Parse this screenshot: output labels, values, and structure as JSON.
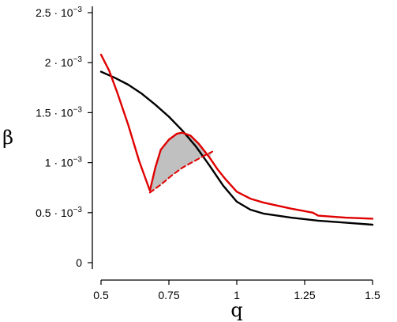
{
  "chart_data": {
    "type": "line",
    "xlabel": "q",
    "ylabel": "β",
    "xlim": [
      0.5,
      1.5
    ],
    "ylim": [
      0,
      0.0025
    ],
    "grid": false,
    "x_ticks": [
      {
        "value": 0.5,
        "label": "0.5"
      },
      {
        "value": 0.75,
        "label": "0.75"
      },
      {
        "value": 1.0,
        "label": "1"
      },
      {
        "value": 1.25,
        "label": "1.25"
      },
      {
        "value": 1.5,
        "label": "1.5"
      }
    ],
    "y_ticks": [
      {
        "value": 0,
        "mantissa": "0",
        "exp": ""
      },
      {
        "value": 0.0005,
        "mantissa": "0.5 · 10",
        "exp": "−3"
      },
      {
        "value": 0.001,
        "mantissa": "1 · 10",
        "exp": "−3"
      },
      {
        "value": 0.0015,
        "mantissa": "1.5 · 10",
        "exp": "−3"
      },
      {
        "value": 0.002,
        "mantissa": "2 · 10",
        "exp": "−3"
      },
      {
        "value": 0.0025,
        "mantissa": "2.5 · 10",
        "exp": "−3"
      }
    ],
    "series": [
      {
        "color": "#000000",
        "style": "solid",
        "x": [
          0.5,
          0.55,
          0.6,
          0.65,
          0.7,
          0.75,
          0.8,
          0.85,
          0.9,
          0.95,
          1.0,
          1.05,
          1.1,
          1.2,
          1.3,
          1.4,
          1.5
        ],
        "y": [
          0.00191,
          0.00185,
          0.00178,
          0.00169,
          0.00158,
          0.00146,
          0.00132,
          0.00116,
          0.00097,
          0.00077,
          0.00061,
          0.00053,
          0.00049,
          0.00045,
          0.00042,
          0.0004,
          0.00038
        ]
      },
      {
        "color": "#e00000",
        "style": "solid",
        "x": [
          0.5,
          0.53,
          0.56,
          0.6,
          0.64,
          0.68,
          0.7,
          0.72,
          0.75,
          0.78,
          0.8,
          0.83,
          0.86,
          0.9,
          0.93,
          0.96,
          1.0,
          1.05,
          1.1,
          1.2,
          1.28,
          1.3,
          1.4,
          1.5
        ],
        "y": [
          0.00208,
          0.00192,
          0.0017,
          0.00138,
          0.00102,
          0.00072,
          0.00095,
          0.00113,
          0.00123,
          0.00129,
          0.0013,
          0.00127,
          0.00119,
          0.00105,
          0.00093,
          0.00083,
          0.00071,
          0.00064,
          0.0006,
          0.00054,
          0.0005,
          0.00047,
          0.00045,
          0.00044
        ]
      },
      {
        "color": "#e00000",
        "style": "dashed",
        "x": [
          0.68,
          0.72,
          0.76,
          0.8,
          0.84,
          0.88,
          0.91
        ],
        "y": [
          0.0007,
          0.00078,
          0.00087,
          0.00095,
          0.00101,
          0.00107,
          0.00111
        ]
      }
    ],
    "shaded_region": {
      "color": "#c0c0c0",
      "between": "red solid loop and red dashed branch",
      "x_range": [
        0.68,
        0.91
      ]
    }
  }
}
